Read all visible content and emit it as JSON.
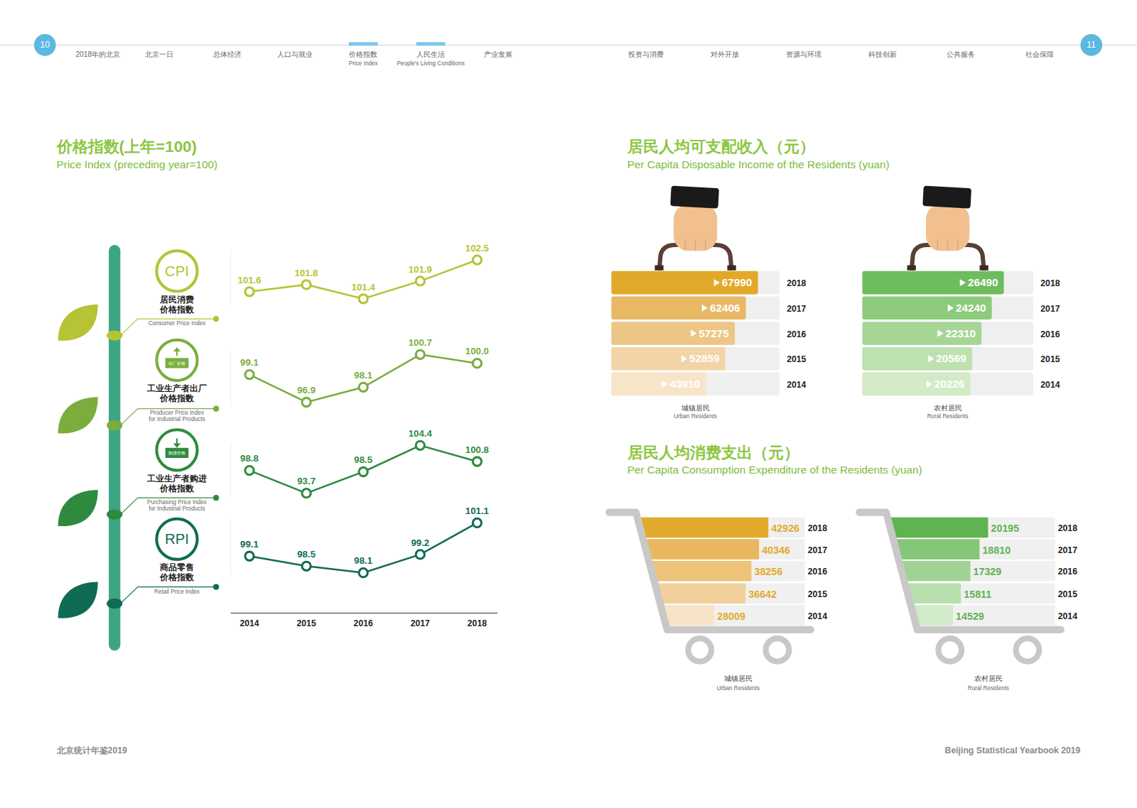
{
  "header": {
    "pages": [
      "10",
      "11"
    ],
    "nav": [
      {
        "zh": "2018年的北京"
      },
      {
        "zh": "北京一日"
      },
      {
        "zh": "总体经济"
      },
      {
        "zh": "人口与就业"
      },
      {
        "zh": "价格指数",
        "en": "Price Index"
      },
      {
        "zh": "人民生活",
        "en": "People's Living Conditions"
      },
      {
        "zh": "产业发展"
      },
      {
        "zh": "投资与消费"
      },
      {
        "zh": "对外开放"
      },
      {
        "zh": "资源与环境"
      },
      {
        "zh": "科技创新"
      },
      {
        "zh": "公共服务"
      },
      {
        "zh": "社会保障"
      }
    ]
  },
  "sections": [
    {
      "title": "价格指数(上年=100)",
      "subtitle": "Price Index (preceding year=100)"
    },
    {
      "title": "居民人均可支配收入（元）",
      "subtitle": "Per Capita Disposable Income of the Residents (yuan)"
    },
    {
      "title": "居民人均消费支出（元）",
      "subtitle": "Per Capita Consumption Expenditure of the Residents (yuan)"
    }
  ],
  "footer": {
    "left": "北京统计年鉴2019",
    "right": "Beijing Statistical Yearbook 2019"
  },
  "chart_data": [
    {
      "type": "line",
      "title": [
        "居民消费",
        "价格指数"
      ],
      "subtitle": [
        "Consumer Price Index"
      ],
      "icon_text": "CPI",
      "categories": [
        "2014",
        "2015",
        "2016",
        "2017",
        "2018"
      ],
      "values": [
        101.6,
        101.8,
        101.4,
        101.9,
        102.5
      ],
      "color": "#b5c334",
      "ylim": [
        101.2,
        102.8
      ],
      "marker": "circle",
      "data_labels": true,
      "tick_labels": false
    },
    {
      "type": "line",
      "title": [
        "工业生产者出厂",
        "价格指数"
      ],
      "subtitle": [
        "Producer Price Index",
        "for Industrial Products"
      ],
      "icon_text": "出厂价格",
      "categories": [
        "2014",
        "2015",
        "2016",
        "2017",
        "2018"
      ],
      "values": [
        99.1,
        96.9,
        98.1,
        100.7,
        100.0
      ],
      "value_labels": [
        "99.1",
        "96.9",
        "98.1",
        "100.7",
        "100.0"
      ],
      "color": "#7aad3e",
      "ylim": [
        96.5,
        101.0
      ],
      "marker": "circle",
      "data_labels": true,
      "tick_labels": false
    },
    {
      "type": "line",
      "title": [
        "工业生产者购进",
        "价格指数"
      ],
      "subtitle": [
        "Purchasing Price Index",
        "for Industrial Products"
      ],
      "icon_text": "购进价格",
      "categories": [
        "2014",
        "2015",
        "2016",
        "2017",
        "2018"
      ],
      "values": [
        98.8,
        93.7,
        98.5,
        104.4,
        100.8
      ],
      "color": "#2e8b3e",
      "ylim": [
        93,
        105
      ],
      "marker": "circle",
      "data_labels": true,
      "tick_labels": false
    },
    {
      "type": "line",
      "title": [
        "商品零售",
        "价格指数"
      ],
      "subtitle": [
        "Retail Price Index"
      ],
      "icon_text": "RPI",
      "categories": [
        "2014",
        "2015",
        "2016",
        "2017",
        "2018"
      ],
      "values": [
        99.1,
        98.5,
        98.1,
        99.2,
        101.1
      ],
      "color": "#0f6b55",
      "ylim": [
        97.9,
        101.3
      ],
      "marker": "circle",
      "data_labels": true,
      "tick_labels": "x"
    },
    {
      "type": "bar",
      "orientation": "horizontal",
      "title": "城镇居民",
      "subtitle": "Urban Residents",
      "categories": [
        "2018",
        "2017",
        "2016",
        "2015",
        "2014"
      ],
      "values": [
        67990,
        62406,
        57275,
        52859,
        43910
      ],
      "colors": [
        "#e2a82a",
        "#e8b865",
        "#edc585",
        "#f2d4a6",
        "#f8e5c9"
      ],
      "xlim": [
        0,
        78000
      ],
      "data_labels": true,
      "tick_labels": "y"
    },
    {
      "type": "bar",
      "orientation": "horizontal",
      "title": "农村居民",
      "subtitle": "Rural Residents",
      "categories": [
        "2018",
        "2017",
        "2016",
        "2015",
        "2014"
      ],
      "values": [
        26490,
        24240,
        22310,
        20569,
        20226
      ],
      "colors": [
        "#6dbd5f",
        "#8dcb7c",
        "#a6d696",
        "#bde1af",
        "#d3eac6"
      ],
      "xlim": [
        0,
        32000
      ],
      "data_labels": true,
      "tick_labels": "y"
    },
    {
      "type": "bar",
      "orientation": "horizontal",
      "title": "城镇居民",
      "subtitle": "Urban Residents",
      "categories": [
        "2018",
        "2017",
        "2016",
        "2015",
        "2014"
      ],
      "values": [
        42926,
        40346,
        38256,
        36642,
        28009
      ],
      "colors": [
        "#e2aa2c",
        "#e9b760",
        "#edc37a",
        "#f1d09c",
        "#f8e3c6"
      ],
      "xlim": [
        0,
        53000
      ],
      "data_labels": true,
      "tick_labels": "y"
    },
    {
      "type": "bar",
      "orientation": "horizontal",
      "title": "农村居民",
      "subtitle": "Rural Residents",
      "categories": [
        "2018",
        "2017",
        "2016",
        "2015",
        "2014"
      ],
      "values": [
        20195,
        18810,
        17329,
        15811,
        14529
      ],
      "colors": [
        "#5fb351",
        "#86c678",
        "#a0d393",
        "#badfae",
        "#d2ebc8"
      ],
      "xlim": [
        0,
        31000
      ],
      "data_labels": true,
      "tick_labels": "y"
    }
  ]
}
